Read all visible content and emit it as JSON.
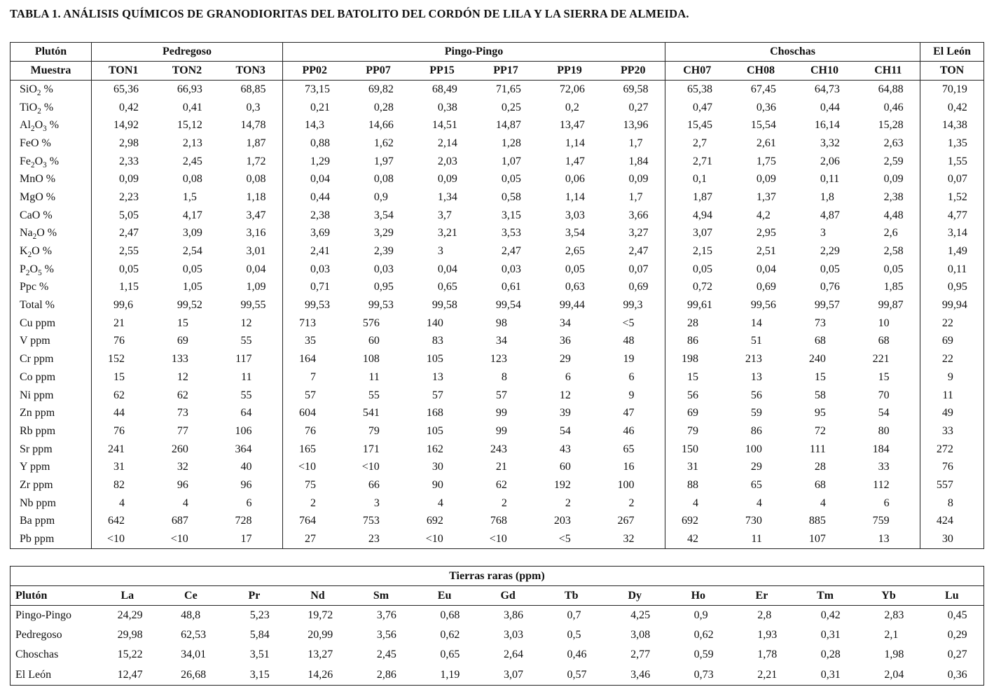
{
  "title": "TABLA 1. ANÁLISIS QUÍMICOS DE GRANODIORITAS DEL BATOLITO DEL CORDÓN DE LILA Y LA SIERRA DE ALMEIDA.",
  "main_table": {
    "corner_row1": "Plutón",
    "corner_row2": "Muestra",
    "groups": [
      {
        "name": "Pedregoso",
        "samples": [
          "TON1",
          "TON2",
          "TON3"
        ]
      },
      {
        "name": "Pingo-Pingo",
        "samples": [
          "PP02",
          "PP07",
          "PP15",
          "PP17",
          "PP19",
          "PP20"
        ]
      },
      {
        "name": "Choschas",
        "samples": [
          "CH07",
          "CH08",
          "CH10",
          "CH11"
        ]
      },
      {
        "name": "El León",
        "samples": [
          "TON"
        ]
      }
    ],
    "rows": [
      {
        "label": "SiO2 %",
        "values": [
          "65,36",
          "66,93",
          "68,85",
          "73,15",
          "69,82",
          "68,49",
          "71,65",
          "72,06",
          "69,58",
          "65,38",
          "67,45",
          "64,73",
          "64,88",
          "70,19"
        ]
      },
      {
        "label": "TiO2 %",
        "values": [
          "0,42",
          "0,41",
          "0,3",
          "0,21",
          "0,28",
          "0,38",
          "0,25",
          "0,2",
          "0,27",
          "0,47",
          "0,36",
          "0,44",
          "0,46",
          "0,42"
        ]
      },
      {
        "label": "Al2O3 %",
        "values": [
          "14,92",
          "15,12",
          "14,78",
          "14,3",
          "14,66",
          "14,51",
          "14,87",
          "13,47",
          "13,96",
          "15,45",
          "15,54",
          "16,14",
          "15,28",
          "14,38"
        ]
      },
      {
        "label": "FeO %",
        "values": [
          "2,98",
          "2,13",
          "1,87",
          "0,88",
          "1,62",
          "2,14",
          "1,28",
          "1,14",
          "1,7",
          "2,7",
          "2,61",
          "3,32",
          "2,63",
          "1,35"
        ]
      },
      {
        "label": "Fe2O3 %",
        "values": [
          "2,33",
          "2,45",
          "1,72",
          "1,29",
          "1,97",
          "2,03",
          "1,07",
          "1,47",
          "1,84",
          "2,71",
          "1,75",
          "2,06",
          "2,59",
          "1,55"
        ]
      },
      {
        "label": "MnO %",
        "values": [
          "0,09",
          "0,08",
          "0,08",
          "0,04",
          "0,08",
          "0,09",
          "0,05",
          "0,06",
          "0,09",
          "0,1",
          "0,09",
          "0,11",
          "0,09",
          "0,07"
        ]
      },
      {
        "label": "MgO %",
        "values": [
          "2,23",
          "1,5",
          "1,18",
          "0,44",
          "0,9",
          "1,34",
          "0,58",
          "1,14",
          "1,7",
          "1,87",
          "1,37",
          "1,8",
          "2,38",
          "1,52"
        ]
      },
      {
        "label": "CaO %",
        "values": [
          "5,05",
          "4,17",
          "3,47",
          "2,38",
          "3,54",
          "3,7",
          "3,15",
          "3,03",
          "3,66",
          "4,94",
          "4,2",
          "4,87",
          "4,48",
          "4,77"
        ]
      },
      {
        "label": "Na2O %",
        "values": [
          "2,47",
          "3,09",
          "3,16",
          "3,69",
          "3,29",
          "3,21",
          "3,53",
          "3,54",
          "3,27",
          "3,07",
          "2,95",
          "3",
          "2,6",
          "3,14"
        ]
      },
      {
        "label": "K2O %",
        "values": [
          "2,55",
          "2,54",
          "3,01",
          "2,41",
          "2,39",
          "3",
          "2,47",
          "2,65",
          "2,47",
          "2,15",
          "2,51",
          "2,29",
          "2,58",
          "1,49"
        ]
      },
      {
        "label": "P2O5 %",
        "values": [
          "0,05",
          "0,05",
          "0,04",
          "0,03",
          "0,03",
          "0,04",
          "0,03",
          "0,05",
          "0,07",
          "0,05",
          "0,04",
          "0,05",
          "0,05",
          "0,11"
        ]
      },
      {
        "label": "Ppc %",
        "values": [
          "1,15",
          "1,05",
          "1,09",
          "0,71",
          "0,95",
          "0,65",
          "0,61",
          "0,63",
          "0,69",
          "0,72",
          "0,69",
          "0,76",
          "1,85",
          "0,95"
        ]
      },
      {
        "label": "Total %",
        "values": [
          "99,6",
          "99,52",
          "99,55",
          "99,53",
          "99,53",
          "99,58",
          "99,54",
          "99,44",
          "99,3",
          "99,61",
          "99,56",
          "99,57",
          "99,87",
          "99,94"
        ]
      },
      {
        "label": "Cu ppm",
        "values": [
          "21",
          "15",
          "12",
          "713",
          "576",
          "140",
          "98",
          "34",
          "<5",
          "28",
          "14",
          "73",
          "10",
          "22"
        ]
      },
      {
        "label": "V ppm",
        "values": [
          "76",
          "69",
          "55",
          "35",
          "60",
          "83",
          "34",
          "36",
          "48",
          "86",
          "51",
          "68",
          "68",
          "69"
        ]
      },
      {
        "label": "Cr ppm",
        "values": [
          "152",
          "133",
          "117",
          "164",
          "108",
          "105",
          "123",
          "29",
          "19",
          "198",
          "213",
          "240",
          "221",
          "22"
        ]
      },
      {
        "label": "Co ppm",
        "values": [
          "15",
          "12",
          "11",
          "7",
          "11",
          "13",
          "8",
          "6",
          "6",
          "15",
          "13",
          "15",
          "15",
          "9"
        ]
      },
      {
        "label": "Ni ppm",
        "values": [
          "62",
          "62",
          "55",
          "57",
          "55",
          "57",
          "57",
          "12",
          "9",
          "56",
          "56",
          "58",
          "70",
          "11"
        ]
      },
      {
        "label": "Zn ppm",
        "values": [
          "44",
          "73",
          "64",
          "604",
          "541",
          "168",
          "99",
          "39",
          "47",
          "69",
          "59",
          "95",
          "54",
          "49"
        ]
      },
      {
        "label": "Rb ppm",
        "values": [
          "76",
          "77",
          "106",
          "76",
          "79",
          "105",
          "99",
          "54",
          "46",
          "79",
          "86",
          "72",
          "80",
          "33"
        ]
      },
      {
        "label": "Sr ppm",
        "values": [
          "241",
          "260",
          "364",
          "165",
          "171",
          "162",
          "243",
          "43",
          "65",
          "150",
          "100",
          "111",
          "184",
          "272"
        ]
      },
      {
        "label": "Y ppm",
        "values": [
          "31",
          "32",
          "40",
          "<10",
          "<10",
          "30",
          "21",
          "60",
          "16",
          "31",
          "29",
          "28",
          "33",
          "76"
        ]
      },
      {
        "label": "Zr ppm",
        "values": [
          "82",
          "96",
          "96",
          "75",
          "66",
          "90",
          "62",
          "192",
          "100",
          "88",
          "65",
          "68",
          "112",
          "557"
        ]
      },
      {
        "label": "Nb ppm",
        "values": [
          "4",
          "4",
          "6",
          "2",
          "3",
          "4",
          "2",
          "2",
          "2",
          "4",
          "4",
          "4",
          "6",
          "8"
        ]
      },
      {
        "label": "Ba ppm",
        "values": [
          "642",
          "687",
          "728",
          "764",
          "753",
          "692",
          "768",
          "203",
          "267",
          "692",
          "730",
          "885",
          "759",
          "424"
        ]
      },
      {
        "label": "Pb ppm",
        "values": [
          "<10",
          "<10",
          "17",
          "27",
          "23",
          "<10",
          "<10",
          "<5",
          "32",
          "42",
          "11",
          "107",
          "13",
          "30"
        ]
      }
    ]
  },
  "rare_earth_table": {
    "title": "Tierras raras (ppm)",
    "corner": "Plutón",
    "elements": [
      "La",
      "Ce",
      "Pr",
      "Nd",
      "Sm",
      "Eu",
      "Gd",
      "Tb",
      "Dy",
      "Ho",
      "Er",
      "Tm",
      "Yb",
      "Lu"
    ],
    "rows": [
      {
        "label": "Pingo-Pingo",
        "values": [
          "24,29",
          "48,8",
          "5,23",
          "19,72",
          "3,76",
          "0,68",
          "3,86",
          "0,7",
          "4,25",
          "0,9",
          "2,8",
          "0,42",
          "2,83",
          "0,45"
        ]
      },
      {
        "label": "Pedregoso",
        "values": [
          "29,98",
          "62,53",
          "5,84",
          "20,99",
          "3,56",
          "0,62",
          "3,03",
          "0,5",
          "3,08",
          "0,62",
          "1,93",
          "0,31",
          "2,1",
          "0,29"
        ]
      },
      {
        "label": "Choschas",
        "values": [
          "15,22",
          "34,01",
          "3,51",
          "13,27",
          "2,45",
          "0,65",
          "2,64",
          "0,46",
          "2,77",
          "0,59",
          "1,78",
          "0,28",
          "1,98",
          "0,27"
        ]
      },
      {
        "label": "El León",
        "values": [
          "12,47",
          "26,68",
          "3,15",
          "14,26",
          "2,86",
          "1,19",
          "3,07",
          "0,57",
          "3,46",
          "0,73",
          "2,21",
          "0,31",
          "2,04",
          "0,36"
        ]
      }
    ]
  }
}
